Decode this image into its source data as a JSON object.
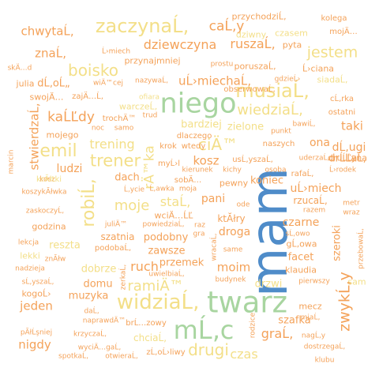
{
  "palette": {
    "orange": "#F4A259",
    "salmon": "#F08A6C",
    "yellow": "#F3DF88",
    "blue": "#4F8CC9",
    "green": "#A8D5A0",
    "tan": "#E8B887"
  },
  "words": [
    {
      "text": "mam",
      "color": "blue",
      "weight": 100
    },
    {
      "text": "twarz",
      "color": "green",
      "weight": 78
    },
    {
      "text": "niego",
      "color": "green",
      "weight": 75
    },
    {
      "text": "mĹ‚c",
      "color": "green",
      "weight": 72
    },
    {
      "text": "widziaĹ‚",
      "color": "yellow",
      "weight": 66
    },
    {
      "text": "zaczynaĹ‚",
      "color": "yellow",
      "weight": 60
    },
    {
      "text": "musiaĹ‚",
      "color": "yellow",
      "weight": 58
    },
    {
      "text": "robiĹ‚",
      "color": "yellow",
      "weight": 56
    },
    {
      "text": "emil",
      "color": "yellow",
      "weight": 56
    },
    {
      "text": "trener",
      "color": "yellow",
      "weight": 56
    },
    {
      "text": "boisko",
      "color": "yellow",
      "weight": 52
    },
    {
      "text": "ciÄ™",
      "color": "yellow",
      "weight": 52
    },
    {
      "text": "jestem",
      "color": "yellow",
      "weight": 50
    },
    {
      "text": "zwykĹ‚y",
      "color": "orange",
      "weight": 50
    },
    {
      "text": "drugi",
      "color": "yellow",
      "weight": 50
    },
    {
      "text": "ramiÄ™",
      "color": "yellow",
      "weight": 48
    },
    {
      "text": "wiedziaĹ‚",
      "color": "yellow",
      "weight": 48
    },
    {
      "text": "moje",
      "color": "yellow",
      "weight": 48
    },
    {
      "text": "dziewczyna",
      "color": "orange",
      "weight": 46
    },
    {
      "text": "rÄ™ka",
      "color": "yellow",
      "weight": 46
    },
    {
      "text": "kaĹĽdy",
      "color": "orange",
      "weight": 45
    },
    {
      "text": "caĹ‚y",
      "color": "orange",
      "weight": 45
    },
    {
      "text": "trening",
      "color": "yellow",
      "weight": 44
    },
    {
      "text": "ruszaĹ‚",
      "color": "orange",
      "weight": 44
    },
    {
      "text": "stwierdzaĹ‚",
      "color": "orange",
      "weight": 42
    },
    {
      "text": "staĹ‚",
      "color": "yellow",
      "weight": 42
    },
    {
      "text": "uĹ›miechaĹ‚",
      "color": "orange",
      "weight": 40
    },
    {
      "text": "chwytaĹ‚",
      "color": "orange",
      "weight": 40
    },
    {
      "text": "znaĹ‚",
      "color": "orange",
      "weight": 40
    },
    {
      "text": "jeden",
      "color": "orange",
      "weight": 40
    },
    {
      "text": "ruch",
      "color": "orange",
      "weight": 40
    },
    {
      "text": "czas",
      "color": "yellow",
      "weight": 40
    },
    {
      "text": "moim",
      "color": "orange",
      "weight": 40
    },
    {
      "text": "graĹ‚",
      "color": "orange",
      "weight": 40
    },
    {
      "text": "dĹ‚ugi",
      "color": "orange",
      "weight": 38
    },
    {
      "text": "nigdy",
      "color": "orange",
      "weight": 38
    },
    {
      "text": "kosz",
      "color": "orange",
      "weight": 38
    },
    {
      "text": "taki",
      "color": "orange",
      "weight": 38
    },
    {
      "text": "ona",
      "color": "orange",
      "weight": 36
    },
    {
      "text": "pani",
      "color": "orange",
      "weight": 36
    },
    {
      "text": "ludzi",
      "color": "orange",
      "weight": 36
    },
    {
      "text": "dach",
      "color": "orange",
      "weight": 34
    },
    {
      "text": "czarne",
      "color": "orange",
      "weight": 34
    },
    {
      "text": "uĹ›miech",
      "color": "orange",
      "weight": 34
    },
    {
      "text": "droga",
      "color": "orange",
      "weight": 34
    },
    {
      "text": "koniec",
      "color": "orange",
      "weight": 32
    },
    {
      "text": "szeroki",
      "color": "orange",
      "weight": 32
    },
    {
      "text": "zielone",
      "color": "yellow",
      "weight": 32
    },
    {
      "text": "bardziej",
      "color": "yellow",
      "weight": 32
    },
    {
      "text": "reszta",
      "color": "yellow",
      "weight": 32
    },
    {
      "text": "drĹĽaĹ‚",
      "color": "orange",
      "weight": 32
    },
    {
      "text": "zawsze",
      "color": "orange",
      "weight": 32
    },
    {
      "text": "muzyka",
      "color": "orange",
      "weight": 30
    },
    {
      "text": "podobny",
      "color": "orange",
      "weight": 30
    },
    {
      "text": "przemek",
      "color": "orange",
      "weight": 30
    },
    {
      "text": "dobrze",
      "color": "yellow",
      "weight": 30
    },
    {
      "text": "facet",
      "color": "orange",
      "weight": 30
    },
    {
      "text": "szafka",
      "color": "orange",
      "weight": 30
    },
    {
      "text": "drzwi",
      "color": "yellow",
      "weight": 30
    },
    {
      "text": "domu",
      "color": "orange",
      "weight": 30
    },
    {
      "text": "chciaĹ‚",
      "color": "yellow",
      "weight": 28
    },
    {
      "text": "rzucaĹ‚",
      "color": "orange",
      "weight": 28
    },
    {
      "text": "szatnia",
      "color": "orange",
      "weight": 28
    },
    {
      "text": "ktĂłry",
      "color": "orange",
      "weight": 28
    },
    {
      "text": "poruszaĹ‚",
      "color": "orange",
      "weight": 26
    },
    {
      "text": "przychodziĹ‚",
      "color": "orange",
      "weight": 26
    },
    {
      "text": "czasem",
      "color": "yellow",
      "weight": 26
    },
    {
      "text": "dziwny",
      "color": "yellow",
      "weight": 26
    },
    {
      "text": "przynajmniej",
      "color": "orange",
      "weight": 26
    },
    {
      "text": "godzina",
      "color": "orange",
      "weight": 26
    },
    {
      "text": "lekki",
      "color": "yellow",
      "weight": 26
    },
    {
      "text": "mojego",
      "color": "orange",
      "weight": 26
    },
    {
      "text": "sam",
      "color": "yellow",
      "weight": 26
    },
    {
      "text": "pewny",
      "color": "orange",
      "weight": 26
    },
    {
      "text": "gĹ‚owa",
      "color": "orange",
      "weight": 26
    },
    {
      "text": "klaudia",
      "color": "orange",
      "weight": 26
    },
    {
      "text": "dlaczego",
      "color": "orange",
      "weight": 24
    },
    {
      "text": "brĹ…zowy",
      "color": "orange",
      "weight": 24
    },
    {
      "text": "warczeĹ‚",
      "color": "yellow",
      "weight": 24
    },
    {
      "text": "julia",
      "color": "orange",
      "weight": 24
    },
    {
      "text": "dĹ‚oĹ„",
      "color": "orange",
      "weight": 24
    },
    {
      "text": "siadaĹ‚",
      "color": "yellow",
      "weight": 24
    },
    {
      "text": "Ĺ›ciana",
      "color": "orange",
      "weight": 24
    },
    {
      "text": "pyta",
      "color": "orange",
      "weight": 24
    },
    {
      "text": "mecz",
      "color": "orange",
      "weight": 24
    },
    {
      "text": "kolega",
      "color": "orange",
      "weight": 22
    },
    {
      "text": "mojÄ…",
      "color": "orange",
      "weight": 22
    },
    {
      "text": "prostu",
      "color": "orange",
      "weight": 22
    },
    {
      "text": "gdzieĹ›",
      "color": "orange",
      "weight": 22
    },
    {
      "text": "nazywaĹ‚",
      "color": "orange",
      "weight": 22
    },
    {
      "text": "wiÄ™cej",
      "color": "orange",
      "weight": 22
    },
    {
      "text": "Ĺ›miech",
      "color": "orange",
      "weight": 22
    },
    {
      "text": "skÄ…d",
      "color": "orange",
      "weight": 22
    },
    {
      "text": "swojÄ…",
      "color": "orange",
      "weight": 22
    },
    {
      "text": "zajÄ…Ĺ‚",
      "color": "orange",
      "weight": 22
    },
    {
      "text": "ofiara",
      "color": "yellow",
      "weight": 20
    },
    {
      "text": "obserwowaĹ‚",
      "color": "orange",
      "weight": 22
    },
    {
      "text": "cĹ‚rka",
      "color": "orange",
      "weight": 22
    },
    {
      "text": "trochÄ™",
      "color": "orange",
      "weight": 22
    },
    {
      "text": "trud",
      "color": "orange",
      "weight": 20
    },
    {
      "text": "noc",
      "color": "orange",
      "weight": 20
    },
    {
      "text": "samo",
      "color": "orange",
      "weight": 20
    },
    {
      "text": "punkt",
      "color": "orange",
      "weight": 20
    },
    {
      "text": "bawiĹ‚",
      "color": "orange",
      "weight": 20
    },
    {
      "text": "ostatni",
      "color": "orange",
      "weight": 22
    },
    {
      "text": "krok",
      "color": "orange",
      "weight": 20
    },
    {
      "text": "wtedy",
      "color": "orange",
      "weight": 20
    },
    {
      "text": "naszych",
      "color": "orange",
      "weight": 20
    },
    {
      "text": "uderzaĹ‚",
      "color": "orange",
      "weight": 20
    },
    {
      "text": "druĹĽyna",
      "color": "orange",
      "weight": 22
    },
    {
      "text": "myĹ›l",
      "color": "orange",
      "weight": 22
    },
    {
      "text": "kierunek",
      "color": "orange",
      "weight": 20
    },
    {
      "text": "kichy",
      "color": "orange",
      "weight": 20
    },
    {
      "text": "usĹ‚yszaĹ‚",
      "color": "orange",
      "weight": 22
    },
    {
      "text": "rafaĹ‚",
      "color": "orange",
      "weight": 22
    },
    {
      "text": "Ĺ›rodek",
      "color": "orange",
      "weight": 20
    },
    {
      "text": "osoba",
      "color": "orange",
      "weight": 20
    },
    {
      "text": "sobÄ…",
      "color": "orange",
      "weight": 22
    },
    {
      "text": "marcin",
      "color": "orange",
      "weight": 20
    },
    {
      "text": "kosz",
      "color": "orange",
      "weight": 20
    },
    {
      "text": "koszykĂłwka",
      "color": "orange",
      "weight": 20
    },
    {
      "text": "krĂłtki",
      "color": "orange",
      "weight": 22
    },
    {
      "text": "Ĺ‚ycie",
      "color": "orange",
      "weight": 22
    },
    {
      "text": "Ĺ‚awka",
      "color": "orange",
      "weight": 20
    },
    {
      "text": "moja",
      "color": "orange",
      "weight": 20
    },
    {
      "text": "wciÄ…ĹĽ",
      "color": "orange",
      "weight": 22
    },
    {
      "text": "ode",
      "color": "orange",
      "weight": 20
    },
    {
      "text": "razem",
      "color": "orange",
      "weight": 20
    },
    {
      "text": "metr",
      "color": "orange",
      "weight": 20
    },
    {
      "text": "wraz",
      "color": "orange",
      "weight": 20
    },
    {
      "text": "zaskoczyĹ‚",
      "color": "orange",
      "weight": 20
    },
    {
      "text": "juliÄ™",
      "color": "orange",
      "weight": 20
    },
    {
      "text": "powiedziaĹ‚",
      "color": "orange",
      "weight": 20
    },
    {
      "text": "raz",
      "color": "orange",
      "weight": 20
    },
    {
      "text": "gra",
      "color": "orange",
      "weight": 20
    },
    {
      "text": "sĹ‚owo",
      "color": "orange",
      "weight": 20
    },
    {
      "text": "lekcja",
      "color": "orange",
      "weight": 20
    },
    {
      "text": "podobaĹ‚",
      "color": "orange",
      "weight": 22
    },
    {
      "text": "wracaĹ‚",
      "color": "orange",
      "weight": 20
    },
    {
      "text": "same",
      "color": "orange",
      "weight": 20
    },
    {
      "text": "przebowaĹ‚",
      "color": "orange",
      "weight": 20
    },
    {
      "text": "znĂłw",
      "color": "orange",
      "weight": 20
    },
    {
      "text": "nadzieja",
      "color": "orange",
      "weight": 20
    },
    {
      "text": "zerkaĹ‚",
      "color": "orange",
      "weight": 20
    },
    {
      "text": "uwielbiaĹ‚",
      "color": "orange",
      "weight": 20
    },
    {
      "text": "budynek",
      "color": "orange",
      "weight": 20
    },
    {
      "text": "pierwszy",
      "color": "orange",
      "weight": 20
    },
    {
      "text": "sĹ‚yszaĹ‚",
      "color": "orange",
      "weight": 20
    },
    {
      "text": "kogoĹ›",
      "color": "orange",
      "weight": 22
    },
    {
      "text": "daĹ‚",
      "color": "orange",
      "weight": 20
    },
    {
      "text": "naprawdÄ™",
      "color": "orange",
      "weight": 20
    },
    {
      "text": "rodzice",
      "color": "orange",
      "weight": 20
    },
    {
      "text": "miaĹ‚",
      "color": "orange",
      "weight": 20
    },
    {
      "text": "pĂłĹşniej",
      "color": "orange",
      "weight": 20
    },
    {
      "text": "krzyczaĹ‚",
      "color": "orange",
      "weight": 20
    },
    {
      "text": "nagĹ‚y",
      "color": "orange",
      "weight": 20
    },
    {
      "text": "wyciÄ…gaĹ‚",
      "color": "orange",
      "weight": 20
    },
    {
      "text": "zĹ‚oĹ›liwy",
      "color": "orange",
      "weight": 22
    },
    {
      "text": "dostrzegaĹ‚",
      "color": "orange",
      "weight": 20
    },
    {
      "text": "spotkaĹ‚",
      "color": "orange",
      "weight": 20
    },
    {
      "text": "otwieraĹ‚",
      "color": "orange",
      "weight": 20
    },
    {
      "text": "klubu",
      "color": "orange",
      "weight": 20
    }
  ]
}
